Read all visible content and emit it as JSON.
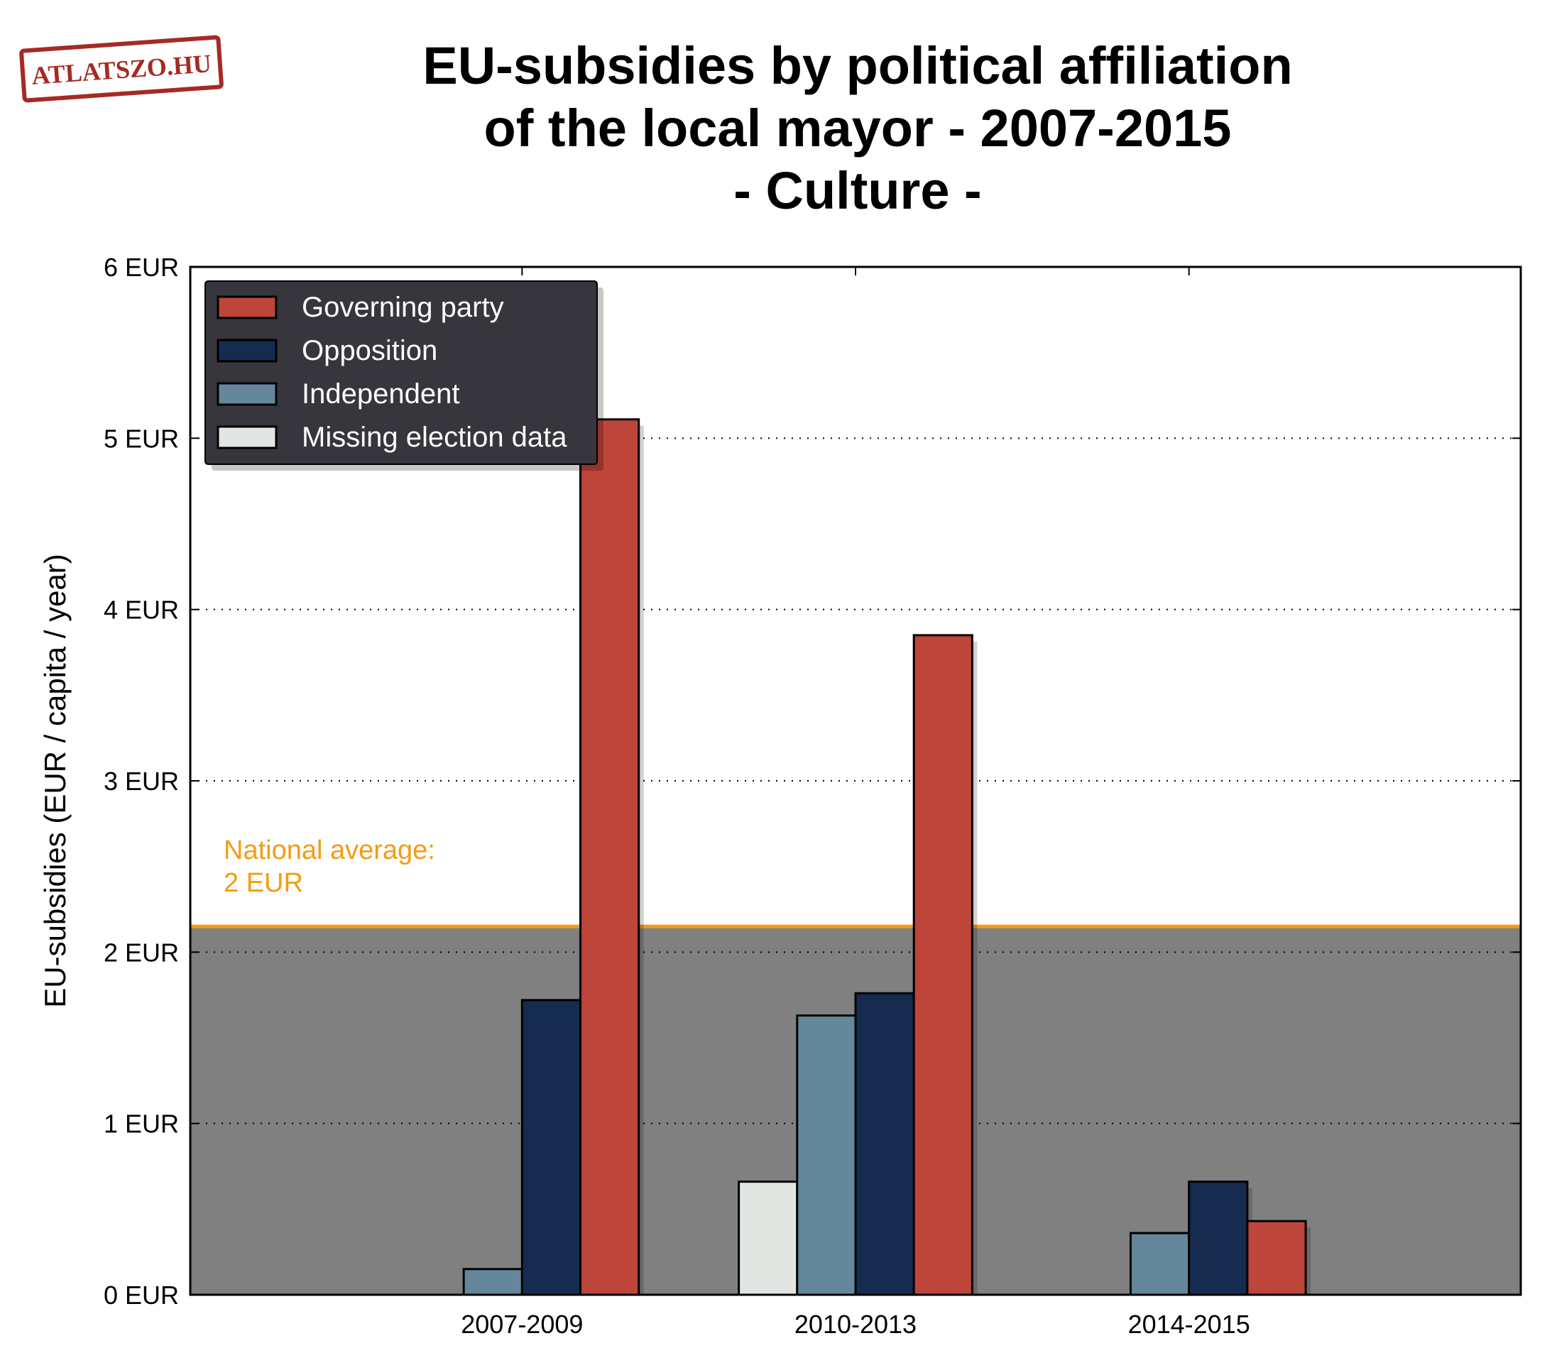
{
  "logo": {
    "text": "ATLATSZO.HU",
    "color": "#a52a24"
  },
  "chart_data": {
    "type": "bar",
    "title_lines": [
      "EU-subsidies by political affiliation",
      "of the local mayor - 2007-2015",
      "- Culture -"
    ],
    "ylabel": "EU-subsidies (EUR / capita / year)",
    "xlabel": "",
    "categories": [
      "2007-2009",
      "2010-2013",
      "2014-2015"
    ],
    "ylim": [
      0,
      6
    ],
    "yticks": [
      {
        "value": 0,
        "label": "0 EUR"
      },
      {
        "value": 1,
        "label": "1 EUR"
      },
      {
        "value": 2,
        "label": "2 EUR"
      },
      {
        "value": 3,
        "label": "3 EUR"
      },
      {
        "value": 4,
        "label": "4 EUR"
      },
      {
        "value": 5,
        "label": "5 EUR"
      },
      {
        "value": 6,
        "label": "6 EUR"
      }
    ],
    "grid": "horizontal dotted",
    "legend_position": "top-left",
    "series": [
      {
        "name": "Missing election data",
        "color": "#e1e6e3",
        "values": [
          0,
          0.66,
          0
        ]
      },
      {
        "name": "Independent",
        "color": "#65879b",
        "values": [
          0.15,
          1.63,
          0.36
        ]
      },
      {
        "name": "Opposition",
        "color": "#152b50",
        "values": [
          1.72,
          1.76,
          0.66
        ]
      },
      {
        "name": "Governing party",
        "color": "#bd4539",
        "values": [
          5.11,
          3.85,
          0.43
        ]
      }
    ],
    "legend_order": [
      "Governing party",
      "Opposition",
      "Independent",
      "Missing election data"
    ],
    "national_average": {
      "value": 2.15,
      "label_line1": "National average:",
      "label_line2": "2 EUR",
      "color": "#f39c12",
      "band_color": "#808080"
    }
  }
}
